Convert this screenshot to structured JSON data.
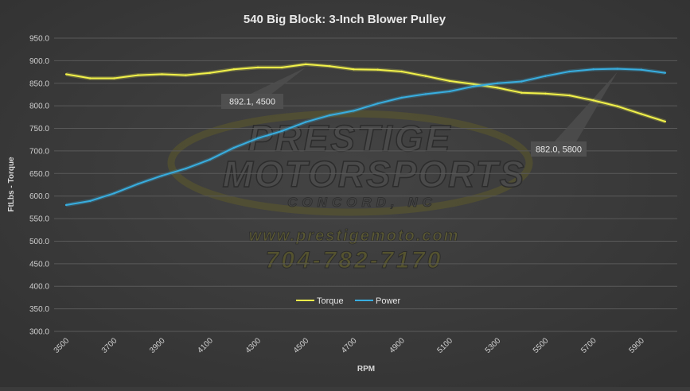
{
  "chart_data": {
    "type": "line",
    "title": "540 Big Block: 3-Inch Blower Pulley",
    "xlabel": "RPM",
    "ylabel": "FtLbs - Torque",
    "x": [
      3500,
      3600,
      3700,
      3800,
      3900,
      4000,
      4100,
      4200,
      4300,
      4400,
      4500,
      4600,
      4700,
      4800,
      4900,
      5000,
      5100,
      5200,
      5300,
      5400,
      5500,
      5600,
      5700,
      5800,
      5900,
      6000
    ],
    "x_ticks": [
      "3500",
      "3700",
      "3900",
      "4100",
      "4300",
      "4500",
      "4700",
      "4900",
      "5100",
      "5300",
      "5500",
      "5700",
      "5900"
    ],
    "ylim": [
      300,
      950
    ],
    "y_ticks": [
      "300.0",
      "350.0",
      "400.0",
      "450.0",
      "500.0",
      "550.0",
      "600.0",
      "650.0",
      "700.0",
      "750.0",
      "800.0",
      "850.0",
      "900.0",
      "950.0"
    ],
    "grid": true,
    "legend_position": "bottom-center",
    "series": [
      {
        "name": "Torque",
        "color": "#f2f24a",
        "values": [
          870,
          861,
          861,
          868,
          870,
          868,
          873,
          881,
          885,
          885,
          892,
          888,
          881,
          880,
          876,
          866,
          855,
          848,
          840,
          829,
          827,
          823,
          812,
          799,
          782,
          765
        ]
      },
      {
        "name": "Power",
        "color": "#38aee0",
        "values": [
          580,
          589,
          606,
          627,
          645,
          661,
          681,
          707,
          728,
          744,
          764,
          779,
          789,
          805,
          818,
          826,
          832,
          843,
          850,
          854,
          866,
          876,
          881,
          882,
          880,
          873
        ]
      }
    ],
    "annotations": [
      {
        "text": "892.1, 4500"
      },
      {
        "text": "882.0, 5800"
      }
    ],
    "watermark": {
      "line1": "PRESTIGE",
      "line2": "MOTORSPORTS",
      "line3": "CONCORD, NC",
      "line4": "www.prestigemoto.com",
      "line5": "704-782-7170"
    }
  }
}
